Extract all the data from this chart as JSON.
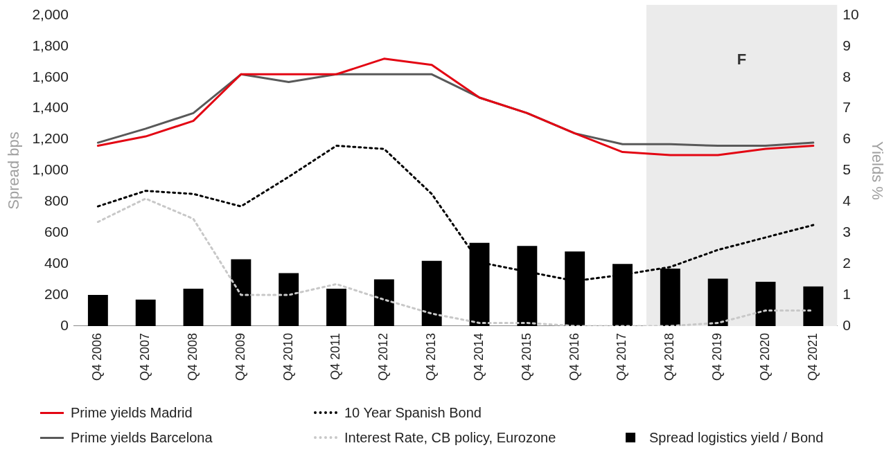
{
  "chart_data": {
    "type": "line",
    "categories": [
      "Q4 2006",
      "Q4 2007",
      "Q4 2008",
      "Q4 2009",
      "Q4 2010",
      "Q4 2011",
      "Q4 2012",
      "Q4 2013",
      "Q4 2014",
      "Q4 2015",
      "Q4 2016",
      "Q4 2017",
      "Q4 2018",
      "Q4 2019",
      "Q4 2020",
      "Q4 2021"
    ],
    "ylabel": "Spread bps",
    "y2label": "Yields %",
    "ylim": [
      0,
      2000
    ],
    "yticks": [
      0,
      {
        "value": 200,
        "label": "200"
      },
      {
        "value": 400,
        "label": "400"
      },
      {
        "value": 600,
        "label": "600"
      },
      {
        "value": 800,
        "label": "800"
      },
      {
        "value": 1000,
        "label": "1,000"
      },
      {
        "value": 1200,
        "label": "1,200"
      },
      {
        "value": 1400,
        "label": "1,400"
      },
      {
        "value": 1600,
        "label": "1,600"
      },
      {
        "value": 1800,
        "label": "1,800"
      },
      {
        "value": 2000,
        "label": "2,000"
      }
    ],
    "y2lim": [
      0,
      10
    ],
    "y2ticks": [
      0,
      1,
      2,
      3,
      4,
      5,
      6,
      7,
      8,
      9,
      10
    ],
    "series": [
      {
        "name": "Prime yields Madrid",
        "axis": "y2",
        "color": "#e30613",
        "line_style": "solid",
        "values": [
          5.8,
          6.1,
          6.6,
          8.1,
          8.1,
          8.1,
          8.6,
          8.4,
          7.35,
          6.85,
          6.2,
          5.6,
          5.5,
          5.5,
          5.7,
          5.8
        ]
      },
      {
        "name": "Prime yields Barcelona",
        "axis": "y2",
        "color": "#595959",
        "line_style": "solid",
        "values": [
          5.9,
          6.35,
          6.85,
          8.1,
          7.85,
          8.1,
          8.1,
          8.1,
          7.35,
          6.85,
          6.2,
          5.85,
          5.85,
          5.8,
          5.8,
          5.9
        ]
      },
      {
        "name": "10 Year Spanish Bond",
        "axis": "y2",
        "color": "#000000",
        "line_style": "dotted",
        "values": [
          3.85,
          4.35,
          4.25,
          3.85,
          4.8,
          5.8,
          5.7,
          4.25,
          2.05,
          1.75,
          1.45,
          1.65,
          1.9,
          2.45,
          2.85,
          3.25
        ]
      },
      {
        "name": "Interest Rate, CB policy, Eurozone",
        "axis": "y2",
        "color": "#c8c8c8",
        "line_style": "dotted",
        "values": [
          3.35,
          4.1,
          3.45,
          1.0,
          1.0,
          1.35,
          0.85,
          0.4,
          0.1,
          0.1,
          0.0,
          0.0,
          0.0,
          0.1,
          0.5,
          0.5
        ]
      },
      {
        "name": "Spread logistics yield / Bond",
        "type": "bar",
        "axis": "y",
        "color": "#000000",
        "values": [
          200,
          170,
          240,
          430,
          340,
          240,
          300,
          420,
          535,
          515,
          480,
          400,
          370,
          305,
          285,
          255
        ]
      }
    ],
    "bands": [
      {
        "axis": "x",
        "from": "Q4 2018",
        "to": "Q4 2021",
        "label": "F",
        "color": "#ebebeb"
      }
    ],
    "marker": "none",
    "grid": false,
    "legend": "bottom"
  }
}
